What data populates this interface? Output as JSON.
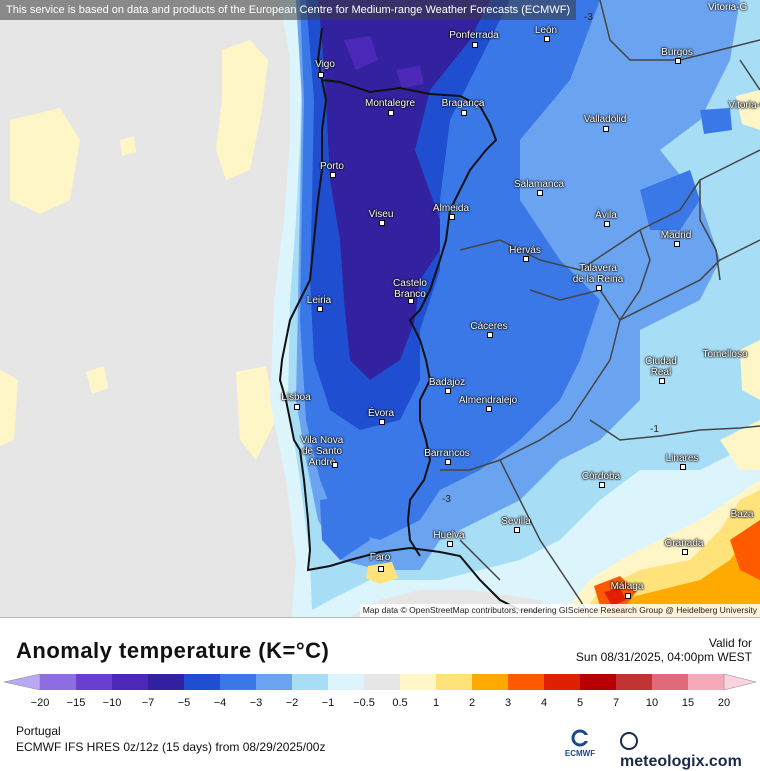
{
  "attribution_top": "This service is based on data and products of the European Centre for Medium-range Weather Forecasts (ECMWF)",
  "attribution_bottom": "Map data © OpenStreetMap contributors, rendering GIScience Research Group @ Heidelberg University",
  "corner_label": "Vitoria-G",
  "cities": [
    {
      "name": "Ponferrada"
    },
    {
      "name": "León"
    },
    {
      "name": "Burgos"
    },
    {
      "name": "Vigo"
    },
    {
      "name": "Montalegre"
    },
    {
      "name": "Bragança"
    },
    {
      "name": "Valladolid"
    },
    {
      "name": "Vitoria-G"
    },
    {
      "name": "Porto"
    },
    {
      "name": "Salamanca"
    },
    {
      "name": "Viseu"
    },
    {
      "name": "Almeida"
    },
    {
      "name": "Ávila"
    },
    {
      "name": "Madrid"
    },
    {
      "name": "Hervás"
    },
    {
      "name": "Talavera\nde la Reina"
    },
    {
      "name": "Castelo\nBranco"
    },
    {
      "name": "Leiria"
    },
    {
      "name": "Cáceres"
    },
    {
      "name": "Ciudad\nReal"
    },
    {
      "name": "Tomelloso"
    },
    {
      "name": "Badajoz"
    },
    {
      "name": "Lisboa"
    },
    {
      "name": "Almendralejo"
    },
    {
      "name": "Évora"
    },
    {
      "name": "Vila Nova\nde Santo\nAndré"
    },
    {
      "name": "Barrancos"
    },
    {
      "name": "Linares"
    },
    {
      "name": "Córdoba"
    },
    {
      "name": "Sevilla"
    },
    {
      "name": "Huelva"
    },
    {
      "name": "Baza"
    },
    {
      "name": "Granada"
    },
    {
      "name": "Faro"
    },
    {
      "name": "Málaga"
    }
  ],
  "contour_labels": [
    "-3",
    "-1",
    "-3"
  ],
  "legend": {
    "title": "Anomaly temperature (K=°C)",
    "valid_label": "Valid for",
    "valid_date": "Sun 08/31/2025, 04:00pm WEST",
    "ticks": [
      "-20",
      "-15",
      "-10",
      "-7",
      "-5",
      "-4",
      "-3",
      "-2",
      "-1",
      "-0.5",
      "0.5",
      "1",
      "2",
      "3",
      "4",
      "5",
      "7",
      "10",
      "15",
      "20"
    ],
    "colors": [
      "#b9a8f2",
      "#8c6ee0",
      "#6a3fd0",
      "#4b28b8",
      "#3322a0",
      "#1f4fd0",
      "#3a78e8",
      "#6aa3f0",
      "#a8ddf6",
      "#dcf4fb",
      "#e6e6e6",
      "#fff6c8",
      "#ffe27a",
      "#ffaa00",
      "#ff5a00",
      "#e02000",
      "#b80000",
      "#c03434",
      "#e06a7a",
      "#f5a9b9",
      "#fbd3dd"
    ],
    "region": "Portugal",
    "model": "ECMWF IFS HRES 0z/12z (15 days) from  08/29/2025/00z",
    "ecmwf_label": "ECMWF",
    "brand": "meteologix.com"
  }
}
